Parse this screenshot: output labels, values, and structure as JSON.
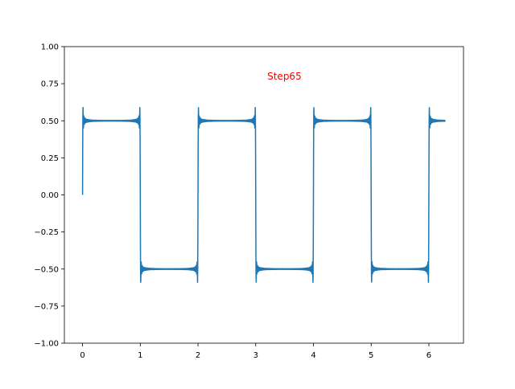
{
  "chart_data": {
    "type": "line",
    "title": "",
    "xlabel": "",
    "ylabel": "",
    "xlim": [
      -0.315,
      6.6
    ],
    "ylim": [
      -1.0,
      1.0
    ],
    "x_ticks": [
      0,
      1,
      2,
      3,
      4,
      5,
      6
    ],
    "x_tick_labels": [
      "0",
      "1",
      "2",
      "3",
      "4",
      "5",
      "6"
    ],
    "y_ticks": [
      -1.0,
      -0.75,
      -0.5,
      -0.25,
      0.0,
      0.25,
      0.5,
      0.75,
      1.0
    ],
    "y_tick_labels": [
      "−1.00",
      "−0.75",
      "−0.50",
      "−0.25",
      "0.00",
      "0.25",
      "0.50",
      "0.75",
      "1.00"
    ],
    "grid": false,
    "annotation": {
      "text": "Step65",
      "x": 3.2,
      "y": 0.8,
      "color": "#ff0000"
    },
    "series": [
      {
        "color": "#1f77b4",
        "function": "fourier-square-wave",
        "harmonics_odd_max": 129,
        "amplitude": 0.5,
        "period": 2,
        "x_start": 0,
        "x_end": 6.283,
        "samples": 2400
      }
    ]
  }
}
